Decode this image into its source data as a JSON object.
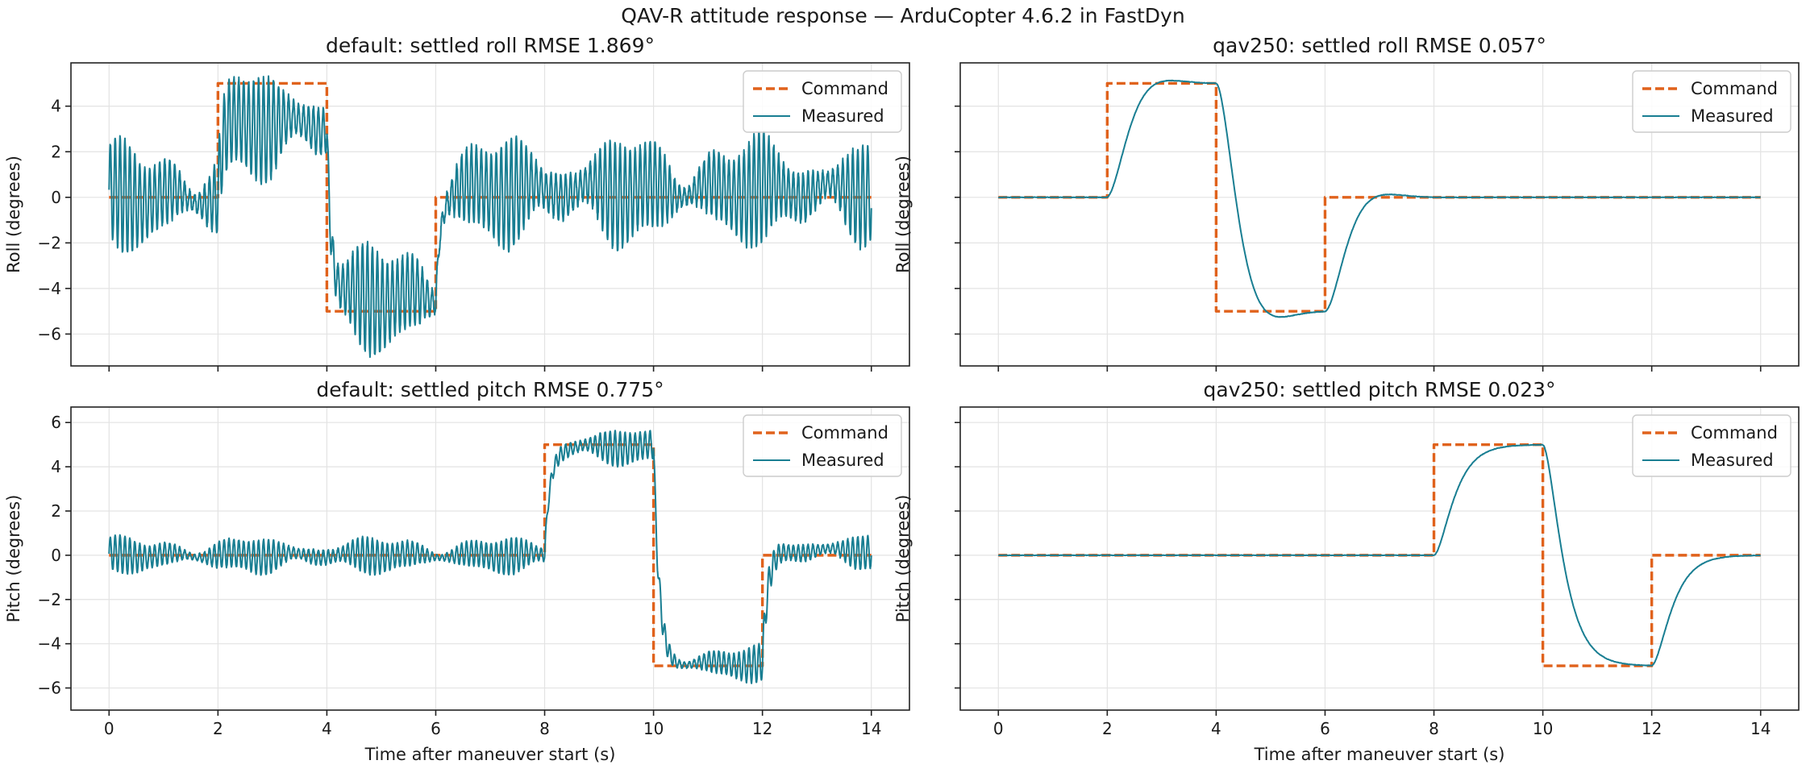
{
  "figure": {
    "title": "QAV-R attitude response — ArduCopter 4.6.2 in FastDyn"
  },
  "colors": {
    "command": "#E0621C",
    "measured": "#197E92"
  },
  "chart_data": [
    {
      "type": "line",
      "id": "default-roll",
      "title": "default: settled roll RMSE 1.869°",
      "xlabel": "",
      "ylabel": "Roll (degrees)",
      "xlim": [
        -0.7,
        14.7
      ],
      "ylim": [
        -7.4,
        5.9
      ],
      "xticks": [
        0,
        2,
        4,
        6,
        8,
        10,
        12,
        14
      ],
      "yticks": [
        -6,
        -4,
        -2,
        0,
        2,
        4
      ],
      "show_x_tick_labels": false,
      "show_y_tick_labels": true,
      "legend": "top-right",
      "grid": true,
      "series": [
        {
          "name": "Command",
          "style": "dashed",
          "x": [
            0,
            2,
            2,
            4,
            4,
            6,
            6,
            14
          ],
          "y": [
            0,
            0,
            5,
            5,
            -5,
            -5,
            0,
            0
          ]
        },
        {
          "name": "Measured",
          "style": "solid",
          "model": "oscillating",
          "segments": [
            [
              0,
              2,
              0.0
            ],
            [
              2,
              4,
              3.2
            ],
            [
              4,
              6,
              -4.4
            ],
            [
              6,
              14,
              0.3
            ]
          ],
          "amplitude": 2.2,
          "frequency_hz": 11,
          "tau_s": 0.08,
          "extremes": {
            "max": 5.2,
            "min": -6.8
          }
        }
      ]
    },
    {
      "type": "line",
      "id": "qav250-roll",
      "title": "qav250: settled roll RMSE 0.057°",
      "xlabel": "",
      "ylabel": "Roll (degrees)",
      "xlim": [
        -0.7,
        14.7
      ],
      "ylim": [
        -7.4,
        5.9
      ],
      "xticks": [
        0,
        2,
        4,
        6,
        8,
        10,
        12,
        14
      ],
      "yticks": [
        -6,
        -4,
        -2,
        0,
        2,
        4
      ],
      "show_x_tick_labels": false,
      "show_y_tick_labels": false,
      "legend": "top-right",
      "grid": true,
      "series": [
        {
          "name": "Command",
          "style": "dashed",
          "x": [
            0,
            2,
            2,
            4,
            4,
            6,
            6,
            14
          ],
          "y": [
            0,
            0,
            5,
            5,
            -5,
            -5,
            0,
            0
          ]
        },
        {
          "name": "Measured",
          "style": "solid",
          "model": "smooth",
          "steps": [
            [
              2,
              5
            ],
            [
              4,
              -5
            ],
            [
              6,
              0
            ]
          ],
          "tau_s": 0.25,
          "overshoot": 0.1
        }
      ]
    },
    {
      "type": "line",
      "id": "default-pitch",
      "title": "default: settled pitch RMSE 0.775°",
      "xlabel": "Time after maneuver start (s)",
      "ylabel": "Pitch (degrees)",
      "xlim": [
        -0.7,
        14.7
      ],
      "ylim": [
        -7.0,
        6.7
      ],
      "xticks": [
        0,
        2,
        4,
        6,
        8,
        10,
        12,
        14
      ],
      "yticks": [
        -6,
        -4,
        -2,
        0,
        2,
        4,
        6
      ],
      "show_x_tick_labels": true,
      "show_y_tick_labels": true,
      "legend": "top-right",
      "grid": true,
      "series": [
        {
          "name": "Command",
          "style": "dashed",
          "x": [
            0,
            8,
            8,
            10,
            10,
            12,
            12,
            14
          ],
          "y": [
            0,
            0,
            5,
            5,
            -5,
            -5,
            0,
            0
          ]
        },
        {
          "name": "Measured",
          "style": "solid",
          "model": "oscillating",
          "segments": [
            [
              0,
              8,
              0.0
            ],
            [
              8,
              10,
              4.9
            ],
            [
              10,
              12,
              -4.9
            ],
            [
              12,
              14,
              0.2
            ]
          ],
          "amplitude": 0.75,
          "frequency_hz": 11,
          "tau_s": 0.1,
          "extremes": {
            "max": 6.1,
            "min": -6.3
          }
        }
      ]
    },
    {
      "type": "line",
      "id": "qav250-pitch",
      "title": "qav250: settled pitch RMSE 0.023°",
      "xlabel": "Time after maneuver start (s)",
      "ylabel": "Pitch (degrees)",
      "xlim": [
        -0.7,
        14.7
      ],
      "ylim": [
        -7.0,
        6.7
      ],
      "xticks": [
        0,
        2,
        4,
        6,
        8,
        10,
        12,
        14
      ],
      "yticks": [
        -6,
        -4,
        -2,
        0,
        2,
        4,
        6
      ],
      "show_x_tick_labels": true,
      "show_y_tick_labels": false,
      "legend": "top-right",
      "grid": true,
      "series": [
        {
          "name": "Command",
          "style": "dashed",
          "x": [
            0,
            8,
            8,
            10,
            10,
            12,
            12,
            14
          ],
          "y": [
            0,
            0,
            5,
            5,
            -5,
            -5,
            0,
            0
          ]
        },
        {
          "name": "Measured",
          "style": "solid",
          "model": "smooth",
          "steps": [
            [
              8,
              5
            ],
            [
              10,
              -5
            ],
            [
              12,
              0
            ]
          ],
          "tau_s": 0.22,
          "overshoot": 0.0
        }
      ]
    }
  ]
}
